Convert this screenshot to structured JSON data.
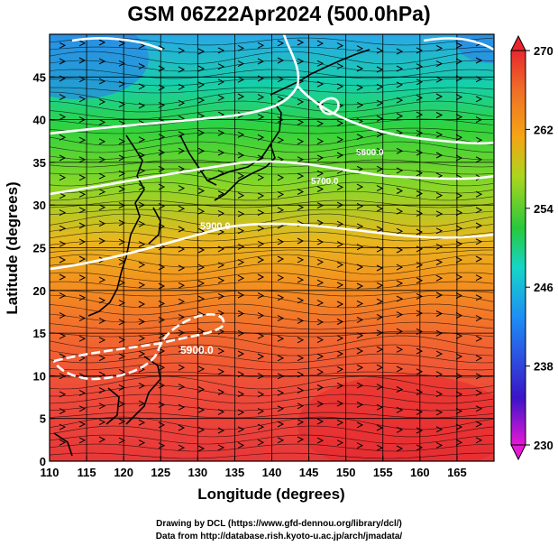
{
  "title": "GSM 06Z22Apr2024 (500.0hPa)",
  "footer": {
    "line1": "Drawing by DCL (https://www.gfd-dennou.org/library/dcl/)",
    "line2": "Data from http://database.rish.kyoto-u.ac.jp/arch/jmadata/"
  },
  "chart_data": {
    "type": "heatmap",
    "xlabel": "Longitude (degrees)",
    "ylabel": "Latitude  (degrees)",
    "xlim": [
      110,
      170
    ],
    "ylim": [
      0,
      50
    ],
    "x_ticks": [
      "110",
      "115",
      "120",
      "125",
      "130",
      "135",
      "140",
      "145",
      "150",
      "155",
      "160",
      "165"
    ],
    "y_ticks": [
      "0",
      "5",
      "10",
      "15",
      "20",
      "25",
      "30",
      "35",
      "40",
      "45"
    ],
    "colorbar": {
      "ticks": [
        "230",
        "238",
        "246",
        "254",
        "262",
        "270"
      ],
      "range": [
        230,
        270
      ],
      "colors": [
        "#e619d6",
        "#3a14c8",
        "#1e8cf5",
        "#16d6c8",
        "#28c83c",
        "#aad61e",
        "#f5a514",
        "#f06e28",
        "#e8282d"
      ]
    },
    "contour_labels": [
      "5900.0",
      "5900.0",
      "5600.0",
      "5700.0"
    ],
    "fields": {
      "shading": "temperature (K)",
      "lines": "geopotential height (m)",
      "arrows": "wind streamlines"
    }
  }
}
